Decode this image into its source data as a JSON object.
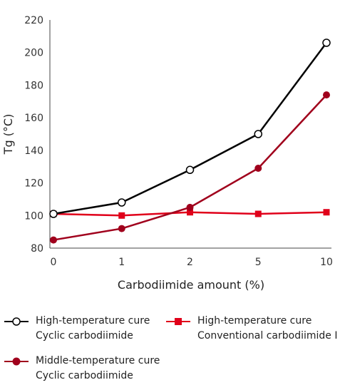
{
  "chart_data": {
    "type": "line",
    "title": "",
    "xlabel": "Carbodiimide amount (%)",
    "ylabel": "Tg (°C)",
    "categories": [
      "0",
      "1",
      "2",
      "5",
      "10"
    ],
    "ylim": [
      80,
      220
    ],
    "yticks": [
      80,
      100,
      120,
      140,
      160,
      180,
      200,
      220
    ],
    "grid": false,
    "legend_position": "bottom",
    "series": [
      {
        "name": "High-temperature cure\nCyclic carbodiimide",
        "values": [
          101,
          108,
          128,
          150,
          206
        ],
        "color": "#000000",
        "marker": "circle-open"
      },
      {
        "name": "Middle-temperature cure\nCyclic carbodiimide",
        "values": [
          85,
          92,
          105,
          129,
          174
        ],
        "color": "#a0001c",
        "marker": "circle-filled"
      },
      {
        "name": "High-temperature cure\nConventional carbodiimide Ⅰ",
        "values": [
          101,
          100,
          102,
          101,
          102
        ],
        "color": "#e0001a",
        "marker": "square-filled"
      }
    ]
  },
  "legend": {
    "items": [
      {
        "line1": "High-temperature cure",
        "line2": "Cyclic carbodiimide"
      },
      {
        "line1": "High-temperature cure",
        "line2": "Conventional carbodiimide Ⅰ"
      },
      {
        "line1": "Middle-temperature cure",
        "line2": "Cyclic carbodiimide"
      }
    ]
  }
}
